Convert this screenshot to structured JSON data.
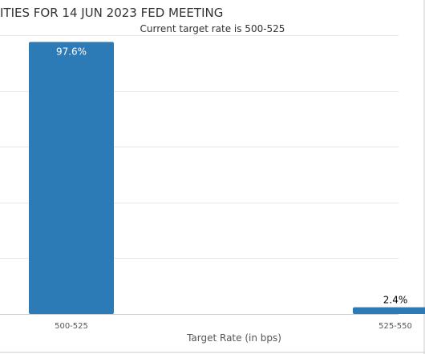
{
  "chart_data": {
    "type": "bar",
    "title": "ITIES FOR 14 JUN 2023 FED MEETING",
    "subtitle": "Current target rate is 500-525",
    "xlabel": "Target Rate (in bps)",
    "ylabel": "",
    "categories": [
      "500-525",
      "525-550"
    ],
    "values": [
      97.6,
      2.4
    ],
    "data_labels": [
      "97.6%",
      "2.4%"
    ],
    "ylim": [
      0,
      100
    ],
    "grid": true,
    "legend": "none",
    "colors": {
      "bar": "#2c7bb6",
      "grid": "#e6e6e6",
      "axis": "#cccccc",
      "frame": "#cccccc",
      "text": "#333333",
      "label_inside": "#ffffff",
      "label_outside": "#000000"
    }
  }
}
